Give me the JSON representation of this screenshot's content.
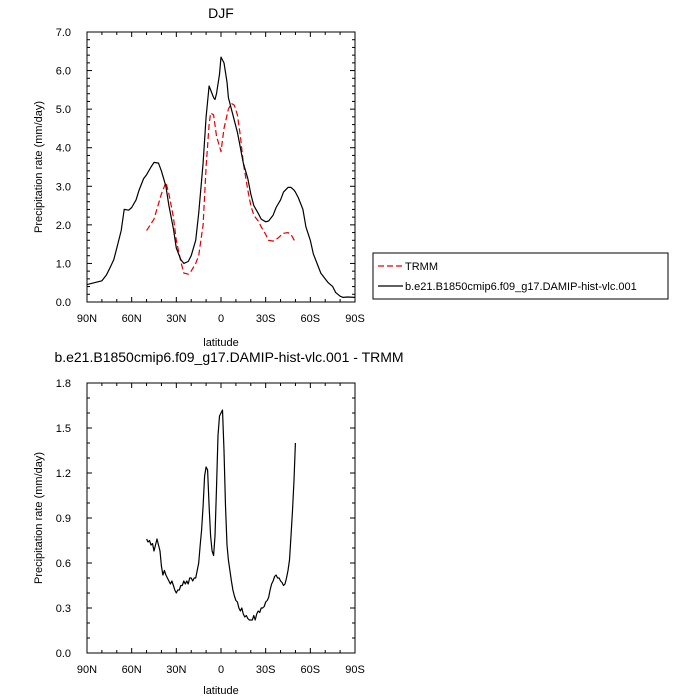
{
  "chart_data": [
    {
      "type": "line",
      "title": "DJF",
      "xlabel": "latitude",
      "ylabel": "Precipitation rate (mm/day)",
      "xticks": [
        "90N",
        "60N",
        "30N",
        "0",
        "30S",
        "60S",
        "90S"
      ],
      "yticks": [
        "0.0",
        "1.0",
        "2.0",
        "3.0",
        "4.0",
        "5.0",
        "6.0",
        "7.0"
      ],
      "xlim": [
        90,
        -90
      ],
      "ylim": [
        0,
        7
      ],
      "legend": "right",
      "series": [
        {
          "name": "TRMM",
          "color": "#e00000",
          "dash": "dashed",
          "x": [
            50,
            45,
            40,
            37,
            35,
            32,
            30,
            27,
            25,
            22,
            20,
            17,
            15,
            12,
            10,
            8,
            7,
            5,
            3,
            0,
            -2,
            -5,
            -7,
            -9,
            -11,
            -13,
            -15,
            -18,
            -20,
            -22,
            -25,
            -27,
            -30,
            -32,
            -35,
            -38,
            -40,
            -42,
            -45,
            -47,
            -50
          ],
          "y": [
            1.85,
            2.15,
            2.8,
            3.1,
            2.8,
            2.2,
            1.6,
            1.05,
            0.75,
            0.72,
            0.8,
            1.0,
            1.2,
            2.0,
            3.5,
            4.6,
            4.9,
            4.85,
            4.3,
            3.9,
            4.5,
            5.0,
            5.15,
            5.1,
            4.85,
            4.3,
            3.6,
            2.9,
            2.5,
            2.25,
            2.1,
            1.95,
            1.75,
            1.6,
            1.58,
            1.65,
            1.72,
            1.78,
            1.8,
            1.75,
            1.55
          ]
        },
        {
          "name": "b.e21.B1850cmip6.f09_g17.DAMIP-hist-vlc.001",
          "color": "#000000",
          "dash": "solid",
          "x": [
            90,
            85,
            80,
            77,
            75,
            72,
            70,
            67,
            65,
            62,
            60,
            57,
            55,
            52,
            50,
            47,
            45,
            42,
            40,
            37,
            35,
            32,
            30,
            27,
            25,
            22,
            20,
            17,
            15,
            12,
            10,
            8,
            7,
            5,
            4,
            3,
            1,
            0,
            -2,
            -4,
            -5,
            -7,
            -9,
            -11,
            -13,
            -15,
            -18,
            -20,
            -22,
            -25,
            -27,
            -30,
            -32,
            -35,
            -37,
            -40,
            -42,
            -45,
            -47,
            -49,
            -50,
            -52,
            -55,
            -57,
            -60,
            -62,
            -65,
            -67,
            -70,
            -72,
            -75,
            -77,
            -80,
            -82,
            -85,
            -90
          ],
          "y": [
            0.45,
            0.5,
            0.55,
            0.7,
            0.85,
            1.1,
            1.4,
            1.85,
            2.4,
            2.38,
            2.45,
            2.65,
            2.9,
            3.2,
            3.3,
            3.5,
            3.62,
            3.6,
            3.4,
            3.0,
            2.5,
            1.9,
            1.4,
            1.1,
            1.0,
            1.05,
            1.2,
            1.6,
            2.3,
            3.6,
            4.8,
            5.6,
            5.5,
            5.3,
            5.25,
            5.4,
            5.9,
            6.35,
            6.2,
            5.7,
            5.3,
            5.0,
            4.7,
            4.4,
            4.0,
            3.6,
            3.2,
            2.8,
            2.5,
            2.3,
            2.15,
            2.08,
            2.1,
            2.25,
            2.45,
            2.65,
            2.85,
            2.97,
            2.97,
            2.9,
            2.85,
            2.7,
            2.4,
            1.95,
            1.6,
            1.25,
            0.95,
            0.75,
            0.6,
            0.5,
            0.4,
            0.25,
            0.15,
            0.12,
            0.13,
            0.12
          ]
        }
      ]
    },
    {
      "type": "line",
      "title": "b.e21.B1850cmip6.f09_g17.DAMIP-hist-vlc.001 - TRMM",
      "xlabel": "latitude",
      "ylabel": "Precipitation rate (mm/day)",
      "xticks": [
        "90N",
        "60N",
        "30N",
        "0",
        "30S",
        "60S",
        "90S"
      ],
      "yticks": [
        "0.0",
        "0.3",
        "0.6",
        "0.9",
        "1.2",
        "1.5",
        "1.8"
      ],
      "xlim": [
        90,
        -90
      ],
      "ylim": [
        0,
        1.8
      ],
      "series": [
        {
          "color": "#000000",
          "dash": "solid",
          "x": [
            50,
            49,
            48,
            47,
            46,
            45,
            44,
            43,
            42,
            41,
            40,
            39,
            38,
            37,
            36,
            35,
            34,
            33,
            32,
            31,
            30,
            29,
            28,
            27,
            26,
            25,
            24,
            23,
            22,
            21,
            20,
            19,
            18,
            17,
            16,
            15,
            14,
            13,
            12,
            11,
            10,
            9,
            8,
            7,
            6,
            5,
            4,
            3,
            2,
            1,
            0,
            -1,
            -2,
            -3,
            -4,
            -5,
            -6,
            -7,
            -8,
            -9,
            -10,
            -11,
            -12,
            -13,
            -14,
            -15,
            -16,
            -17,
            -18,
            -19,
            -20,
            -21,
            -22,
            -23,
            -24,
            -25,
            -26,
            -27,
            -28,
            -29,
            -30,
            -31,
            -32,
            -33,
            -34,
            -35,
            -36,
            -37,
            -38,
            -39,
            -40,
            -41,
            -42,
            -43,
            -44,
            -45,
            -46,
            -47,
            -48,
            -49,
            -50
          ],
          "y": [
            0.76,
            0.74,
            0.75,
            0.72,
            0.73,
            0.68,
            0.72,
            0.76,
            0.72,
            0.68,
            0.58,
            0.52,
            0.55,
            0.52,
            0.5,
            0.48,
            0.46,
            0.48,
            0.45,
            0.42,
            0.4,
            0.42,
            0.42,
            0.45,
            0.45,
            0.48,
            0.46,
            0.48,
            0.46,
            0.5,
            0.5,
            0.48,
            0.5,
            0.5,
            0.55,
            0.6,
            0.72,
            0.82,
            0.98,
            1.18,
            1.24,
            1.22,
            0.98,
            0.78,
            0.68,
            0.65,
            0.78,
            1.1,
            1.45,
            1.58,
            1.6,
            1.62,
            1.35,
            0.98,
            0.72,
            0.62,
            0.55,
            0.48,
            0.42,
            0.38,
            0.35,
            0.34,
            0.3,
            0.28,
            0.3,
            0.26,
            0.24,
            0.25,
            0.23,
            0.22,
            0.22,
            0.22,
            0.25,
            0.22,
            0.26,
            0.28,
            0.27,
            0.3,
            0.3,
            0.31,
            0.34,
            0.35,
            0.37,
            0.42,
            0.46,
            0.48,
            0.51,
            0.52,
            0.5,
            0.5,
            0.48,
            0.47,
            0.45,
            0.46,
            0.5,
            0.55,
            0.62,
            0.78,
            0.95,
            1.15,
            1.4
          ]
        }
      ]
    }
  ]
}
